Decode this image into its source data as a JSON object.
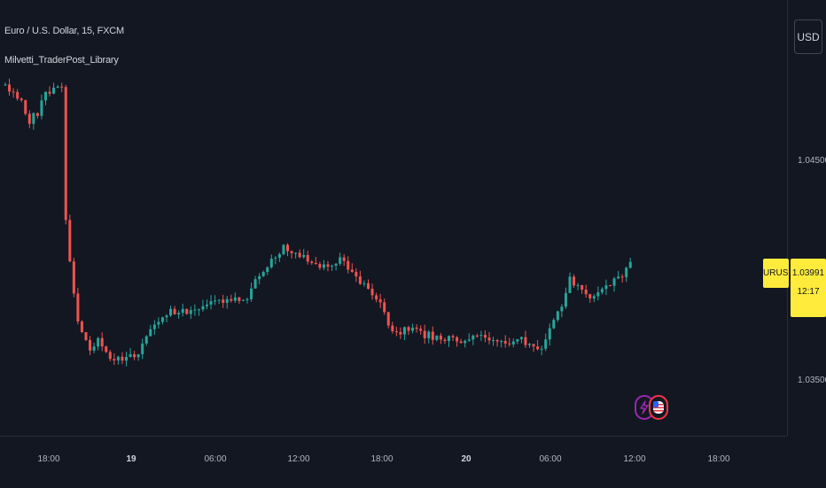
{
  "legend": {
    "symbol_line": "Euro / U.S. Dollar, 15, FXCM",
    "indicator_name": "Milvetti_TraderPost_Library"
  },
  "price_axis": {
    "currency": "USD",
    "ticks": [
      "1.04500",
      "1.03500"
    ],
    "symbol_tag": "EURUSD",
    "last_price": "1.03991",
    "countdown": "12:17"
  },
  "time_axis": {
    "ticks": [
      "18:00",
      "19",
      "06:00",
      "12:00",
      "18:00",
      "20",
      "06:00",
      "12:00",
      "18:00"
    ]
  },
  "events": [
    {
      "name": "flash-icon"
    },
    {
      "name": "us-flag-icon"
    }
  ],
  "colors": {
    "background": "#131722",
    "up": "#26a69a",
    "down": "#ef5350",
    "price_tag": "#ffeb3b",
    "grid_border": "#2a2e39"
  },
  "chart_data": {
    "type": "candlestick",
    "title": "Euro / U.S. Dollar, 15, FXCM",
    "ylim": [
      1.034,
      1.0488
    ],
    "candles": []
  }
}
